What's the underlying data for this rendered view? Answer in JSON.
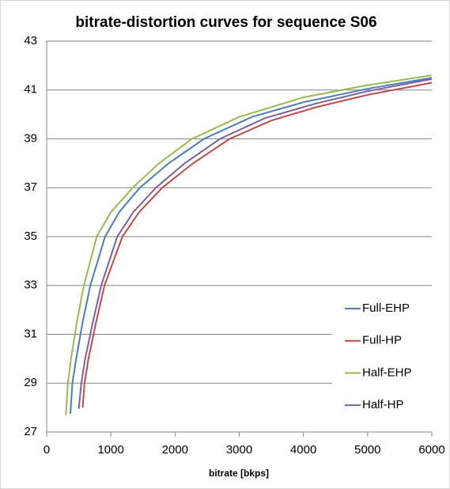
{
  "chart_data": {
    "type": "line",
    "title": "bitrate-distortion curves for sequence S06",
    "x_label": "bitrate [bkps]",
    "xlim": [
      0,
      6000
    ],
    "xticks": [
      0,
      1000,
      2000,
      3000,
      4000,
      5000,
      6000
    ],
    "ylim": [
      27,
      43
    ],
    "yticks": [
      27,
      29,
      31,
      33,
      35,
      37,
      39,
      41,
      43
    ],
    "grid": true,
    "legend": "right",
    "series": [
      {
        "name": "Full-EHP",
        "color": "#4a7ebb",
        "x": [
          370,
          400,
          460,
          560,
          680,
          910,
          1130,
          1450,
          1900,
          2450,
          3200,
          4000,
          5000,
          6000
        ],
        "values": [
          27.75,
          29,
          30,
          31.5,
          33,
          35,
          36,
          37,
          38,
          39,
          39.9,
          40.5,
          41.05,
          41.5
        ]
      },
      {
        "name": "Full-HP",
        "color": "#be4b48",
        "x": [
          560,
          590,
          650,
          770,
          900,
          1180,
          1440,
          1800,
          2280,
          2850,
          3500,
          4200,
          5000,
          6000
        ],
        "values": [
          28,
          29,
          30,
          31.5,
          33,
          35,
          36,
          37,
          38,
          39,
          39.75,
          40.3,
          40.8,
          41.3
        ]
      },
      {
        "name": "Half-EHP",
        "color": "#98b954",
        "x": [
          300,
          330,
          380,
          470,
          580,
          780,
          1000,
          1340,
          1750,
          2265,
          3000,
          4000,
          5000,
          6000
        ],
        "values": [
          27.7,
          29,
          30,
          31.5,
          33,
          35,
          36,
          37,
          38,
          39,
          39.9,
          40.7,
          41.2,
          41.6
        ]
      },
      {
        "name": "Half-HP",
        "color": "#7d60a0",
        "x": [
          500,
          540,
          600,
          720,
          850,
          1100,
          1350,
          1700,
          2150,
          2700,
          3400,
          4200,
          5000,
          6000
        ],
        "values": [
          27.95,
          29,
          30,
          31.5,
          33,
          35,
          36,
          37,
          38,
          39,
          39.85,
          40.45,
          40.95,
          41.45
        ]
      }
    ]
  }
}
